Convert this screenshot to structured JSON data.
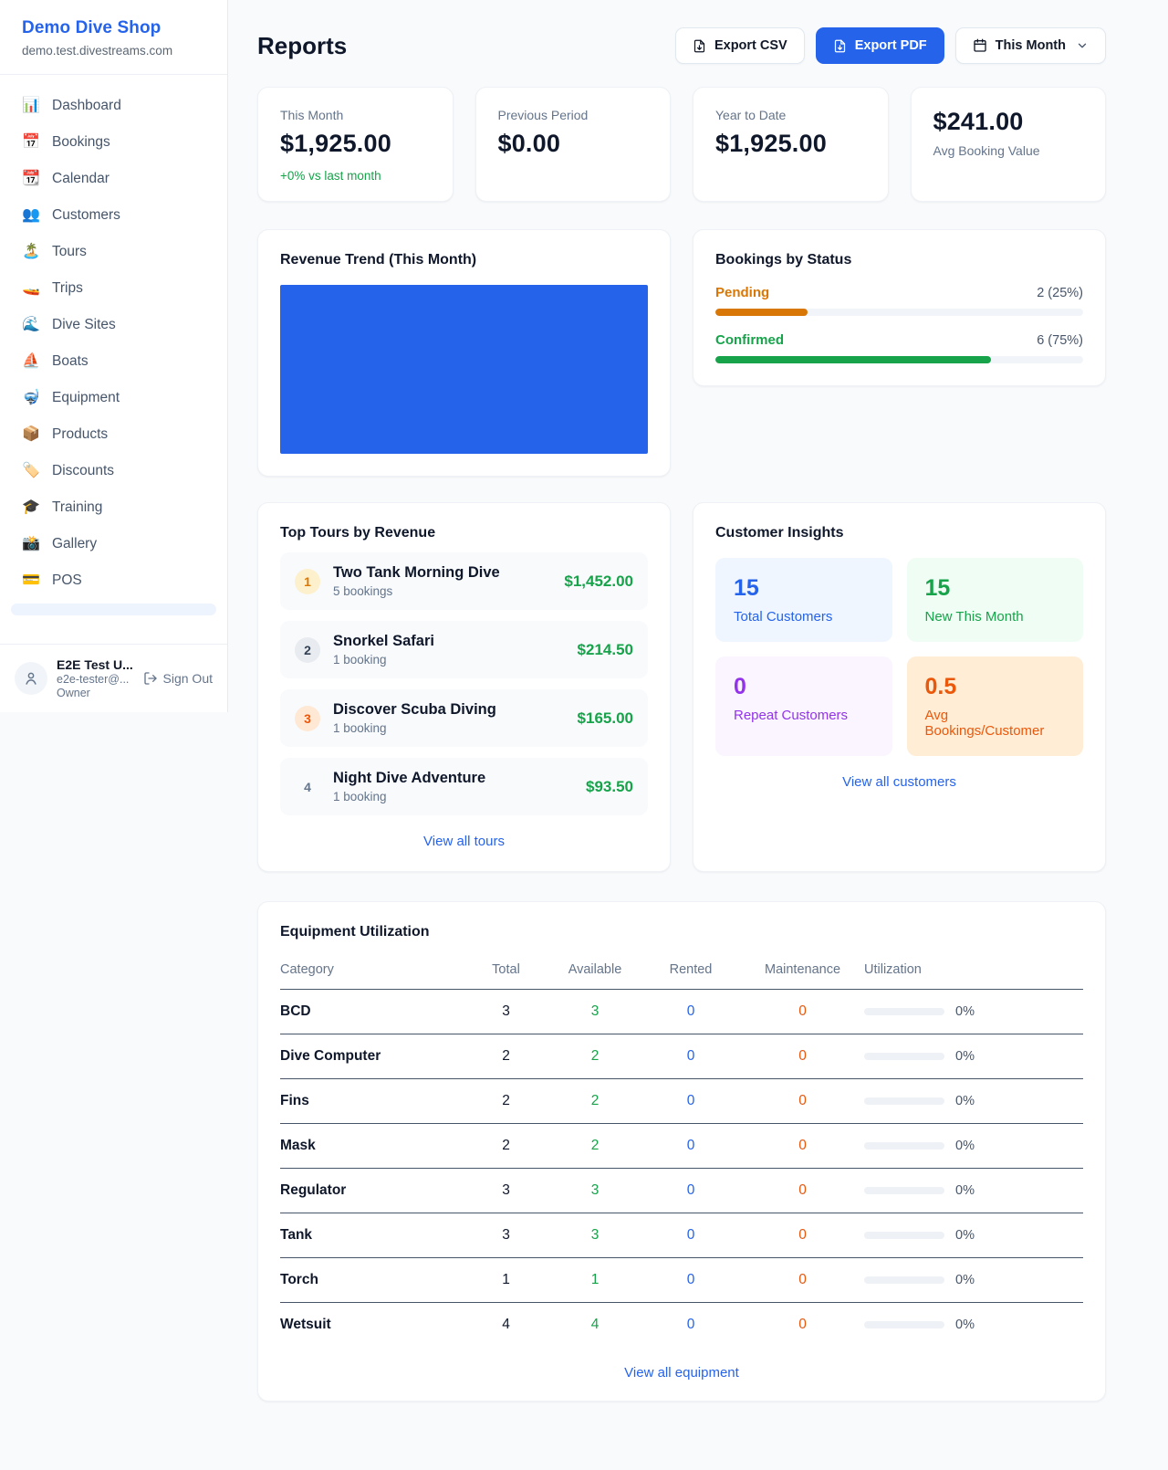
{
  "app": {
    "accent_color": "#2563eb"
  },
  "sidebar": {
    "shop_name": "Demo Dive Shop",
    "shop_domain": "demo.test.divestreams.com",
    "items": [
      {
        "glyph": "📊",
        "label": "Dashboard"
      },
      {
        "glyph": "📅",
        "label": "Bookings"
      },
      {
        "glyph": "📆",
        "label": "Calendar"
      },
      {
        "glyph": "👥",
        "label": "Customers"
      },
      {
        "glyph": "🏝️",
        "label": "Tours"
      },
      {
        "glyph": "🚤",
        "label": "Trips"
      },
      {
        "glyph": "🌊",
        "label": "Dive Sites"
      },
      {
        "glyph": "⛵",
        "label": "Boats"
      },
      {
        "glyph": "🤿",
        "label": "Equipment"
      },
      {
        "glyph": "📦",
        "label": "Products"
      },
      {
        "glyph": "🏷️",
        "label": "Discounts"
      },
      {
        "glyph": "🎓",
        "label": "Training"
      },
      {
        "glyph": "📸",
        "label": "Gallery"
      },
      {
        "glyph": "💳",
        "label": "POS"
      }
    ],
    "user": {
      "name": "E2E Test U...",
      "email": "e2e-tester@...",
      "role": "Owner",
      "sign_out_label": "Sign Out"
    }
  },
  "header": {
    "title": "Reports",
    "buttons": {
      "export_csv": "Export CSV",
      "export_pdf": "Export PDF",
      "period": "This Month"
    }
  },
  "stats": {
    "cards": [
      {
        "label": "This Month",
        "value": "$1,925.00",
        "change": "+0% vs last month"
      },
      {
        "label": "Previous Period",
        "value": "$0.00"
      },
      {
        "label": "Year to Date",
        "value": "$1,925.00"
      },
      {
        "label": "Avg Booking Value",
        "value": "$241.00"
      }
    ]
  },
  "revenue_trend": {
    "title": "Revenue Trend (This Month)",
    "bar_color": "#2563eb"
  },
  "chart_data": {
    "type": "bar",
    "title": "Revenue Trend (This Month)",
    "categories": [
      "This Month"
    ],
    "values": [
      1925
    ],
    "xlabel": "",
    "ylabel": "",
    "legend": false,
    "grid": false,
    "note": "single solid full-area blue bar, no axes or tick labels visible"
  },
  "bookings_by_status": {
    "title": "Bookings by Status",
    "rows": [
      {
        "label": "Pending",
        "value": "2 (25%)",
        "percent": 25,
        "color": "#d97706"
      },
      {
        "label": "Confirmed",
        "value": "6 (75%)",
        "percent": 75,
        "color": "#16a34a"
      }
    ]
  },
  "top_tours": {
    "title": "Top Tours by Revenue",
    "rows": [
      {
        "rank": "1",
        "name": "Two Tank Morning Dive",
        "bookings": "5 bookings",
        "revenue": "$1,452.00"
      },
      {
        "rank": "2",
        "name": "Snorkel Safari",
        "bookings": "1 booking",
        "revenue": "$214.50"
      },
      {
        "rank": "3",
        "name": "Discover Scuba Diving",
        "bookings": "1 booking",
        "revenue": "$165.00"
      },
      {
        "rank": "4",
        "name": "Night Dive Adventure",
        "bookings": "1 booking",
        "revenue": "$93.50"
      }
    ],
    "view_all_label": "View all tours"
  },
  "customer_insights": {
    "title": "Customer Insights",
    "tiles": [
      {
        "value": "15",
        "label": "Total Customers",
        "color": "#2563eb",
        "bg": "#eff6ff"
      },
      {
        "value": "15",
        "label": "New This Month",
        "color": "#16a34a",
        "bg": "#f0fdf4"
      },
      {
        "value": "0",
        "label": "Repeat Customers",
        "color": "#9333ea",
        "bg": "#faf5ff"
      },
      {
        "value": "0.5",
        "label": "Avg Bookings/Customer",
        "color": "#ea580c",
        "bg": "#ffedd5"
      }
    ],
    "view_all_label": "View all customers"
  },
  "equipment": {
    "title": "Equipment Utilization",
    "columns": [
      "Category",
      "Total",
      "Available",
      "Rented",
      "Maintenance",
      "Utilization"
    ],
    "rows": [
      {
        "category": "BCD",
        "total": "3",
        "available": "3",
        "rented": "0",
        "maintenance": "0",
        "utilization_percent": 0,
        "utilization_label": "0%"
      },
      {
        "category": "Dive Computer",
        "total": "2",
        "available": "2",
        "rented": "0",
        "maintenance": "0",
        "utilization_percent": 0,
        "utilization_label": "0%"
      },
      {
        "category": "Fins",
        "total": "2",
        "available": "2",
        "rented": "0",
        "maintenance": "0",
        "utilization_percent": 0,
        "utilization_label": "0%"
      },
      {
        "category": "Mask",
        "total": "2",
        "available": "2",
        "rented": "0",
        "maintenance": "0",
        "utilization_percent": 0,
        "utilization_label": "0%"
      },
      {
        "category": "Regulator",
        "total": "3",
        "available": "3",
        "rented": "0",
        "maintenance": "0",
        "utilization_percent": 0,
        "utilization_label": "0%"
      },
      {
        "category": "Tank",
        "total": "3",
        "available": "3",
        "rented": "0",
        "maintenance": "0",
        "utilization_percent": 0,
        "utilization_label": "0%"
      },
      {
        "category": "Torch",
        "total": "1",
        "available": "1",
        "rented": "0",
        "maintenance": "0",
        "utilization_percent": 0,
        "utilization_label": "0%"
      },
      {
        "category": "Wetsuit",
        "total": "4",
        "available": "4",
        "rented": "0",
        "maintenance": "0",
        "utilization_percent": 0,
        "utilization_label": "0%"
      }
    ],
    "view_all_label": "View all equipment"
  }
}
